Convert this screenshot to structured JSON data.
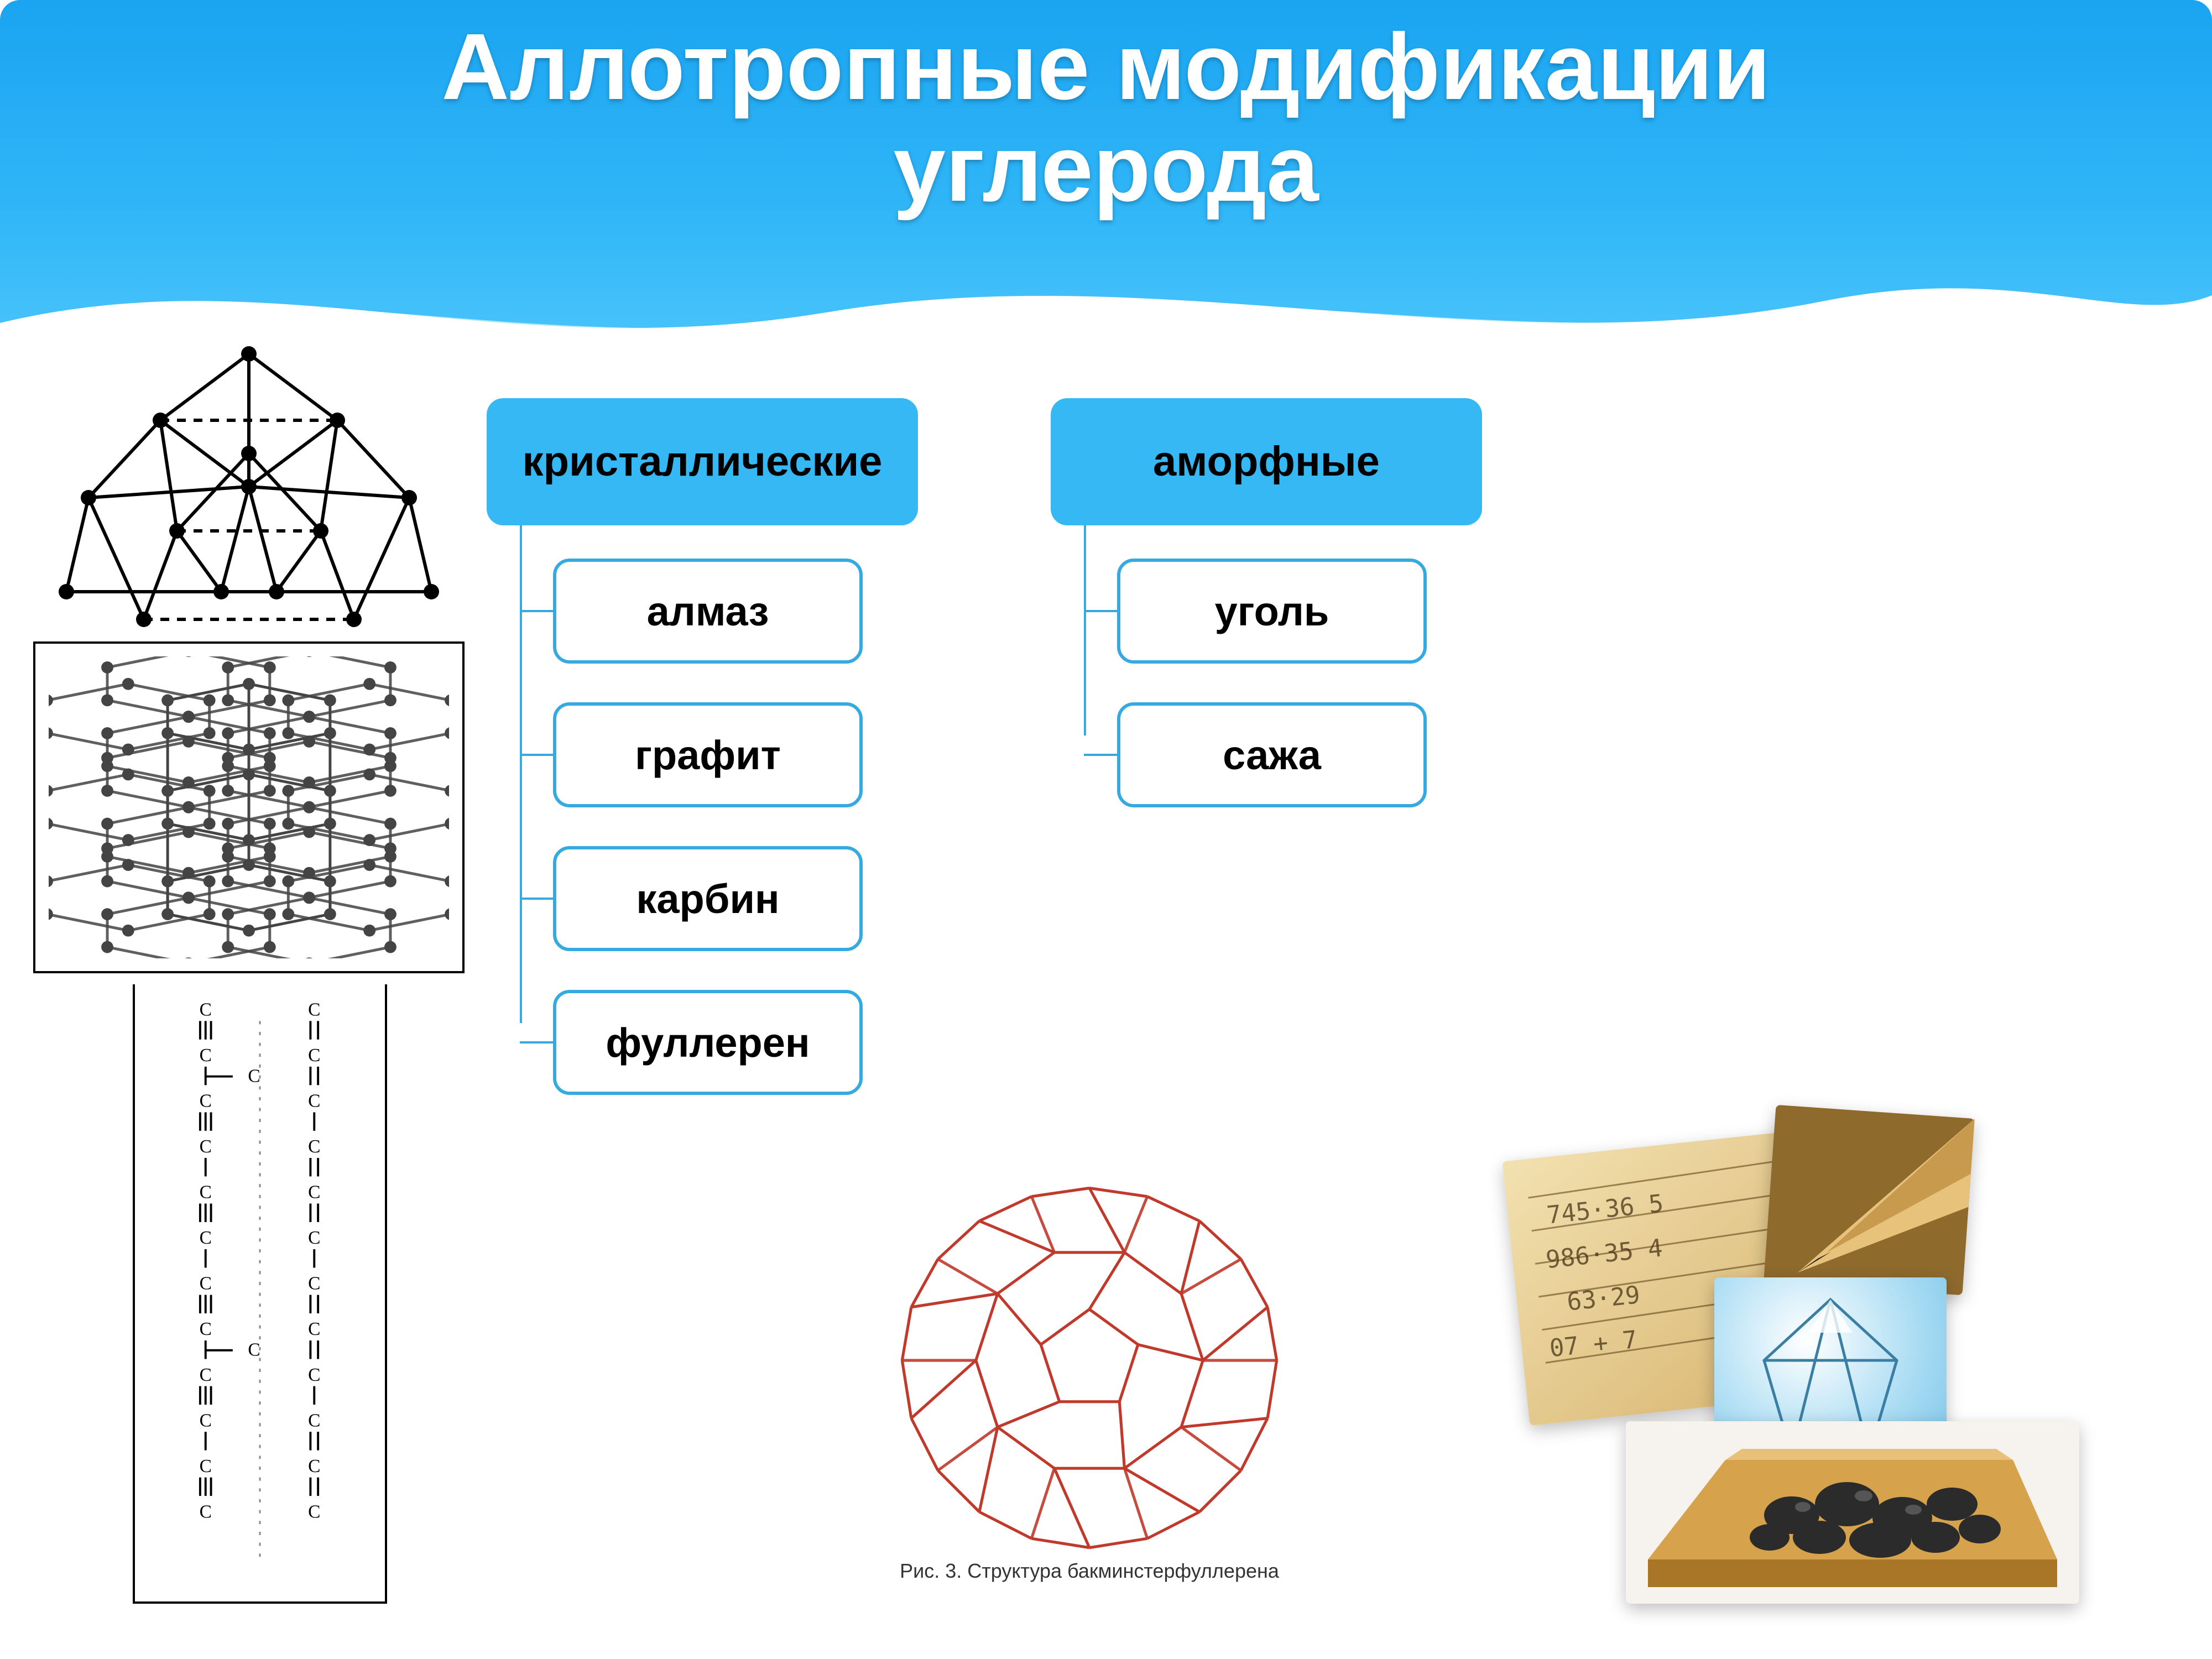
{
  "title_line1": "Аллотропные модификации",
  "title_line2": "углерода",
  "title_color": "#ffffff",
  "title_fontsize": 170,
  "header_gradient": [
    "#1aa4f1",
    "#2fb5f7",
    "#4cc6fb"
  ],
  "category_box": {
    "fill": "#36b8f4",
    "border_radius": 30,
    "fontsize": 76,
    "text_color": "#000000"
  },
  "item_box": {
    "border_color": "#36a9e1",
    "border_width": 6,
    "border_radius": 30,
    "fontsize": 74,
    "text_color": "#000000",
    "background": "#ffffff"
  },
  "connector_color": "#36a9e1",
  "categories": [
    {
      "label": "кристаллические",
      "items": [
        "алмаз",
        "графит",
        "карбин",
        "фуллерен"
      ]
    },
    {
      "label": "аморфные",
      "items": [
        "уголь",
        "сажа"
      ]
    }
  ],
  "illustrations": {
    "diamond": {
      "caption": "",
      "node_color": "#000000",
      "edge_color": "#000000",
      "edge_width": 6,
      "node_radius": 14
    },
    "graphite": {
      "layer_count": 3,
      "node_color": "#444444",
      "edge_color": "#444444",
      "edge_width": 5,
      "node_radius": 11,
      "frame_color": "#000000"
    },
    "carbyne": {
      "chain_count": 2,
      "atom_label": "C",
      "label_fontsize": 34,
      "label_color": "#000000",
      "symbols": [
        "≡",
        "−",
        "=",
        "−"
      ],
      "frame_color": "#000000"
    },
    "fullerene": {
      "stroke_color": "#c0392b",
      "stroke_width": 5,
      "caption": "Рис. 3. Структура бакминстерфуллерена",
      "caption_fontsize": 36,
      "caption_color": "#333333"
    },
    "photo_collage": {
      "panels": [
        {
          "fill": "#d8b470",
          "overlay": "numbers"
        },
        {
          "fill": "#8f6a2d",
          "overlay": "pencil-tip"
        },
        {
          "fill": "#9ad9f4",
          "overlay": "gem"
        },
        {
          "fill": "#d6a24c",
          "overlay": "coal-tray"
        }
      ]
    }
  }
}
